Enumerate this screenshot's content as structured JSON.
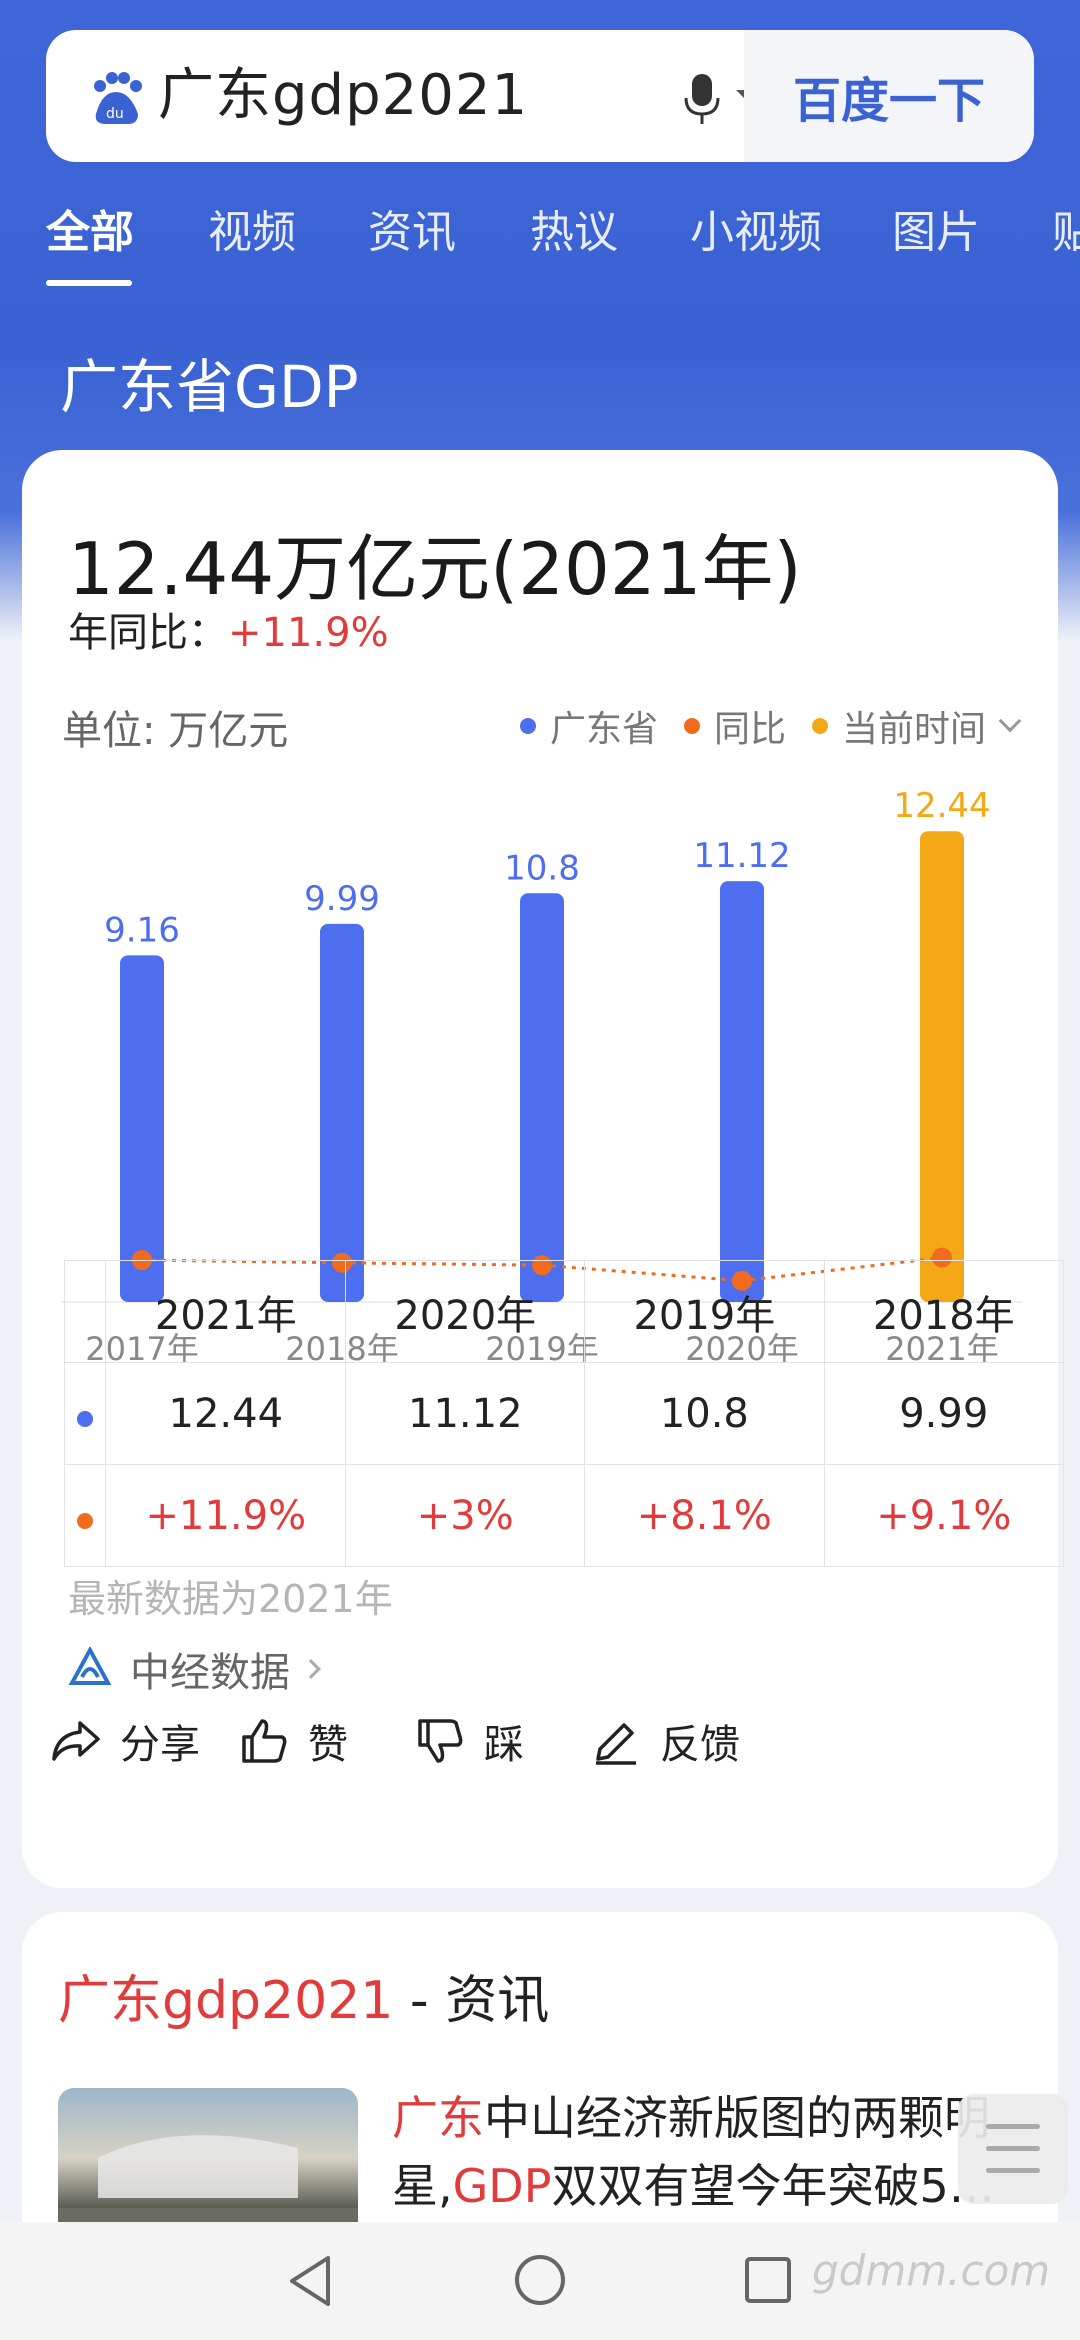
{
  "search": {
    "query": "广东gdp2021",
    "button_label": "百度一下"
  },
  "tabs": [
    {
      "label": "全部",
      "active": true
    },
    {
      "label": "视频",
      "active": false
    },
    {
      "label": "资讯",
      "active": false
    },
    {
      "label": "热议",
      "active": false
    },
    {
      "label": "小视频",
      "active": false
    },
    {
      "label": "图片",
      "active": false
    },
    {
      "label": "贴",
      "active": false
    }
  ],
  "section": {
    "title": "广东省GDP"
  },
  "summary": {
    "value": "12.44万亿元(2021年)",
    "yoy_label": "年同比：",
    "yoy_value": "+11.9%"
  },
  "chart_meta": {
    "unit": "单位: 万亿元",
    "legend": [
      {
        "name": "广东省",
        "color": "#4e6ef0"
      },
      {
        "name": "同比",
        "color": "#f26b1d"
      },
      {
        "name": "当前时间",
        "color": "#f5a815"
      }
    ]
  },
  "chart_data": {
    "type": "bar",
    "categories": [
      "2017年",
      "2018年",
      "2019年",
      "2020年",
      "2021年"
    ],
    "series": [
      {
        "name": "广东省",
        "values": [
          9.16,
          9.99,
          10.8,
          11.12,
          12.44
        ],
        "color": "#4e6ef0",
        "highlight_color": "#f5a815"
      },
      {
        "name": "同比",
        "type": "line",
        "values": [
          7.5,
          6.8,
          6.2,
          2.3,
          8.1
        ],
        "color": "#f26b1d"
      }
    ],
    "value_labels": [
      "9.16",
      "9.99",
      "10.8",
      "11.12",
      "12.44"
    ],
    "highlight_index": 4,
    "ylim": [
      0,
      13
    ]
  },
  "table": {
    "headers": [
      "2021年",
      "2020年",
      "2019年",
      "2018年"
    ],
    "rows": [
      {
        "dot_color": "#4e6ef0",
        "cells": [
          "12.44",
          "11.12",
          "10.8",
          "9.99"
        ],
        "red": false
      },
      {
        "dot_color": "#f26b1d",
        "cells": [
          "+11.9%",
          "+3%",
          "+8.1%",
          "+9.1%"
        ],
        "red": true
      }
    ]
  },
  "note": "最新数据为2021年",
  "source": {
    "label": "中经数据"
  },
  "actions": [
    {
      "label": "分享",
      "icon": "share-icon"
    },
    {
      "label": "赞",
      "icon": "thumbs-up-icon"
    },
    {
      "label": "踩",
      "icon": "thumbs-down-icon"
    },
    {
      "label": "反馈",
      "icon": "edit-icon"
    }
  ],
  "news": {
    "title_red": "广东gdp2021",
    "title_rest": " - 资讯",
    "line1_red": "广东",
    "line1_rest": "中山经济新版图的两颗明",
    "line2_a": "星,",
    "line2_red": "GDP",
    "line2_rest": "双双有望今年突破5…"
  },
  "watermark": "gdmm.com"
}
